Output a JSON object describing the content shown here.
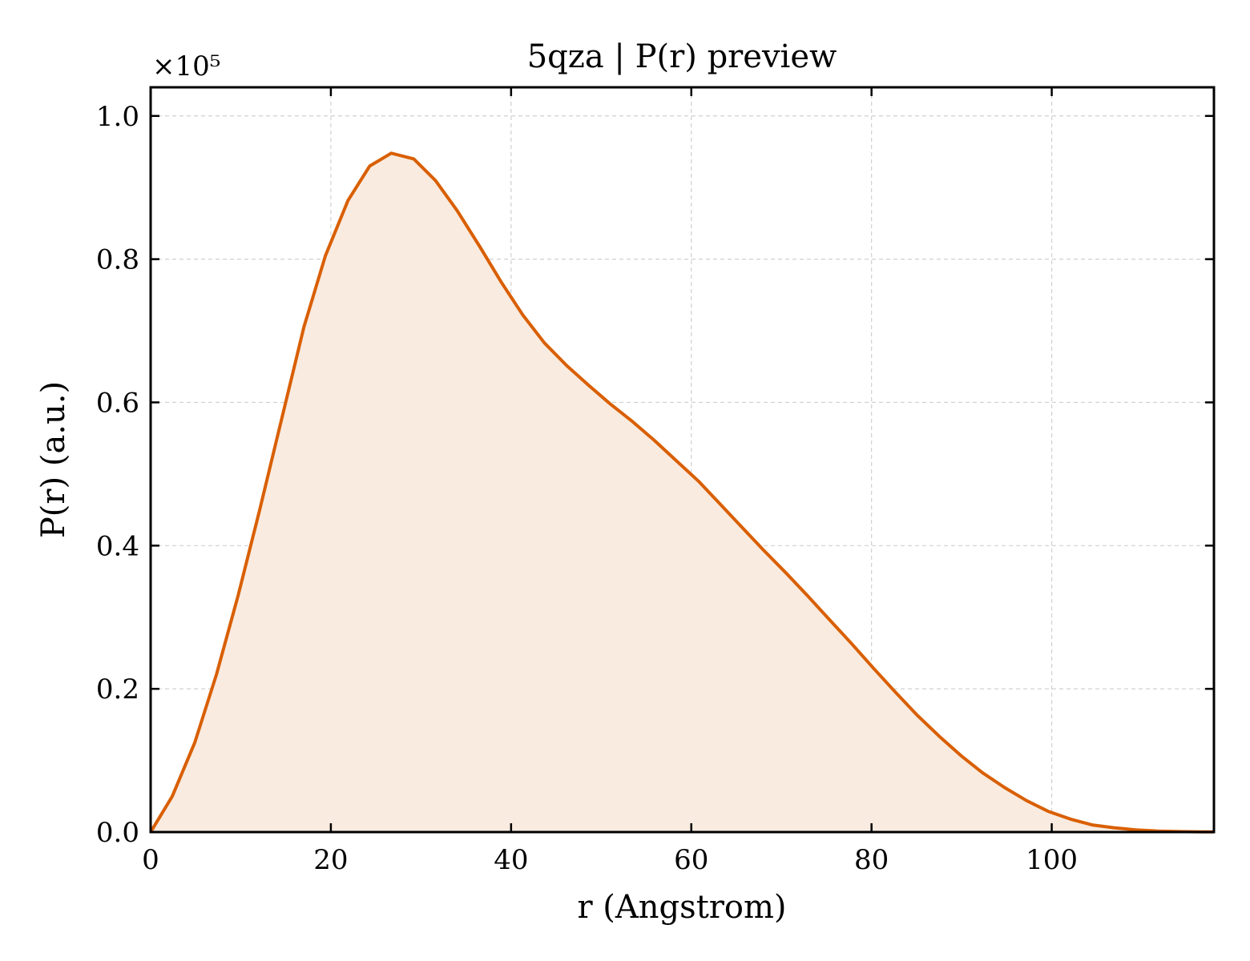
{
  "chart_data": {
    "type": "area",
    "title": "5qza | P(r) preview",
    "xlabel": "r (Angstrom)",
    "ylabel": "P(r) (a.u.)",
    "y_multiplier_label": "×10⁵",
    "xlim": [
      0,
      118
    ],
    "ylim": [
      0,
      1.04
    ],
    "x_ticks": [
      0,
      20,
      40,
      60,
      80,
      100
    ],
    "x_tick_labels": [
      "0",
      "20",
      "40",
      "60",
      "80",
      "100"
    ],
    "y_ticks": [
      0.0,
      0.2,
      0.4,
      0.6,
      0.8,
      1.0
    ],
    "y_tick_labels": [
      "0.0",
      "0.2",
      "0.4",
      "0.6",
      "0.8",
      "1.0"
    ],
    "grid": true,
    "line_color": "#d95f02",
    "fill_color": "#f9ebe0",
    "series": [
      {
        "x": [
          0,
          2.4,
          4.9,
          7.3,
          9.7,
          12.1,
          14.6,
          17.0,
          19.4,
          21.9,
          24.3,
          26.7,
          29.2,
          31.6,
          34.0,
          36.5,
          38.9,
          41.3,
          43.7,
          46.2,
          48.6,
          51.0,
          53.5,
          55.9,
          58.3,
          60.8,
          63.2,
          65.6,
          68.0,
          70.5,
          72.9,
          75.3,
          77.8,
          80.2,
          82.6,
          85.0,
          87.5,
          89.9,
          92.3,
          94.8,
          97.2,
          99.6,
          102.1,
          104.5,
          106.9,
          109.3,
          111.8,
          114.2,
          116.6,
          118.0
        ],
        "values": [
          0.0,
          0.05,
          0.125,
          0.22,
          0.33,
          0.45,
          0.58,
          0.705,
          0.805,
          0.882,
          0.93,
          0.948,
          0.94,
          0.91,
          0.868,
          0.818,
          0.768,
          0.722,
          0.683,
          0.651,
          0.624,
          0.598,
          0.573,
          0.547,
          0.519,
          0.49,
          0.458,
          0.426,
          0.394,
          0.362,
          0.33,
          0.297,
          0.263,
          0.229,
          0.196,
          0.164,
          0.134,
          0.107,
          0.083,
          0.062,
          0.044,
          0.029,
          0.018,
          0.01,
          0.006,
          0.003,
          0.0015,
          0.0007,
          0.0003,
          0.0002
        ]
      }
    ]
  }
}
